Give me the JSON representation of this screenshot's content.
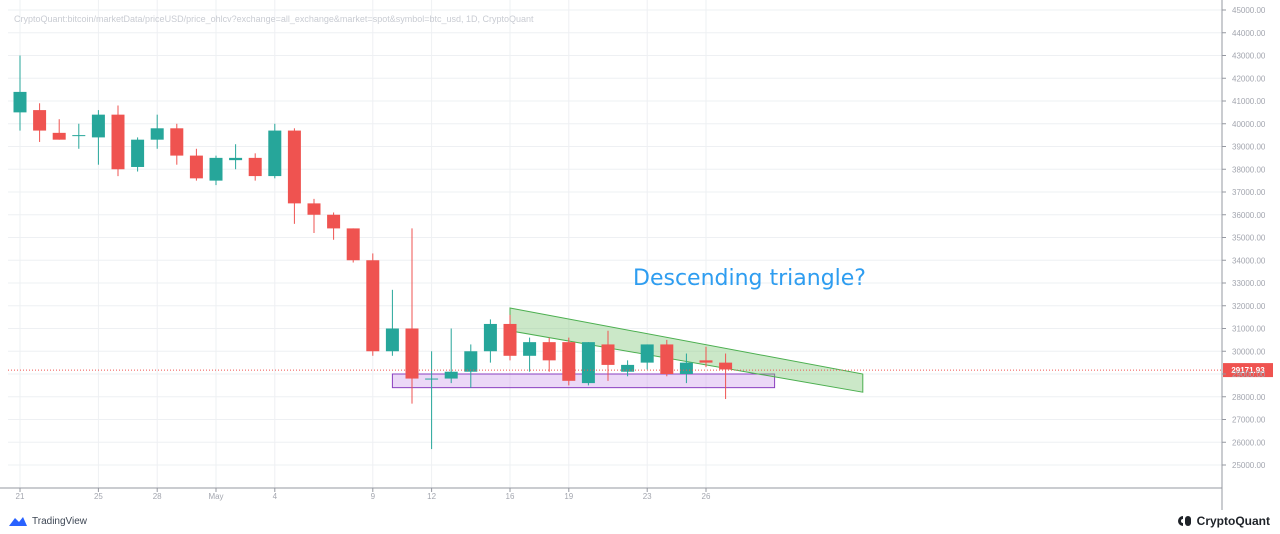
{
  "source_text": "CryptoQuant:bitcoin/marketData/priceUSD/price_ohlcv?exchange=all_exchange&market=spot&symbol=btc_usd, 1D, CryptoQuant",
  "footer": {
    "tradingview_label": "TradingView",
    "cryptoquant_label": "CryptoQuant"
  },
  "colors": {
    "up": "#26a69a",
    "down": "#ef5350",
    "triangle": "#7cc576",
    "support_box": "#c58ee8",
    "annotation": "#2e9df0",
    "price_line": "#ef5350"
  },
  "chart_data": {
    "type": "candlestick",
    "title": "",
    "xlabel": "",
    "ylabel": "",
    "ylim": [
      24000,
      45200
    ],
    "y_ticks": [
      "45000.00",
      "44000.00",
      "43000.00",
      "42000.00",
      "41000.00",
      "40000.00",
      "39000.00",
      "38000.00",
      "37000.00",
      "36000.00",
      "35000.00",
      "34000.00",
      "33000.00",
      "32000.00",
      "31000.00",
      "30000.00",
      "29000.00",
      "28000.00",
      "27000.00",
      "26000.00",
      "25000.00"
    ],
    "x_tick_labels": [
      "21",
      "25",
      "28",
      "May",
      "4",
      "9",
      "12",
      "16",
      "19",
      "23",
      "26"
    ],
    "x_tick_day_index": [
      0,
      4,
      7,
      10,
      13,
      18,
      21,
      25,
      28,
      32,
      35
    ],
    "candles": [
      {
        "day": 0,
        "o": 40500,
        "h": 43000,
        "l": 39700,
        "c": 41400
      },
      {
        "day": 1,
        "o": 40600,
        "h": 40900,
        "l": 39200,
        "c": 39700
      },
      {
        "day": 2,
        "o": 39600,
        "h": 40200,
        "l": 39300,
        "c": 39300
      },
      {
        "day": 3,
        "o": 39500,
        "h": 40000,
        "l": 38900,
        "c": 39500
      },
      {
        "day": 4,
        "o": 39400,
        "h": 40600,
        "l": 38200,
        "c": 40400
      },
      {
        "day": 5,
        "o": 40400,
        "h": 40800,
        "l": 37700,
        "c": 38000
      },
      {
        "day": 6,
        "o": 38100,
        "h": 39400,
        "l": 37900,
        "c": 39300
      },
      {
        "day": 7,
        "o": 39300,
        "h": 40400,
        "l": 38900,
        "c": 39800
      },
      {
        "day": 8,
        "o": 39800,
        "h": 40000,
        "l": 38200,
        "c": 38600
      },
      {
        "day": 9,
        "o": 38600,
        "h": 38900,
        "l": 37500,
        "c": 37600
      },
      {
        "day": 10,
        "o": 37500,
        "h": 38600,
        "l": 37300,
        "c": 38500
      },
      {
        "day": 11,
        "o": 38400,
        "h": 39100,
        "l": 38000,
        "c": 38500
      },
      {
        "day": 12,
        "o": 38500,
        "h": 38700,
        "l": 37500,
        "c": 37700
      },
      {
        "day": 13,
        "o": 37700,
        "h": 40000,
        "l": 37600,
        "c": 39700
      },
      {
        "day": 14,
        "o": 39700,
        "h": 39800,
        "l": 35600,
        "c": 36500
      },
      {
        "day": 15,
        "o": 36500,
        "h": 36700,
        "l": 35200,
        "c": 36000
      },
      {
        "day": 16,
        "o": 36000,
        "h": 36100,
        "l": 34900,
        "c": 35400
      },
      {
        "day": 17,
        "o": 35400,
        "h": 35400,
        "l": 33900,
        "c": 34000
      },
      {
        "day": 18,
        "o": 34000,
        "h": 34300,
        "l": 29800,
        "c": 30000
      },
      {
        "day": 19,
        "o": 30000,
        "h": 32700,
        "l": 29800,
        "c": 31000
      },
      {
        "day": 20,
        "o": 31000,
        "h": 35400,
        "l": 27700,
        "c": 28800
      },
      {
        "day": 21,
        "o": 28800,
        "h": 30000,
        "l": 25700,
        "c": 28800
      },
      {
        "day": 22,
        "o": 28800,
        "h": 31000,
        "l": 28600,
        "c": 29100
      },
      {
        "day": 23,
        "o": 29100,
        "h": 30300,
        "l": 28400,
        "c": 30000
      },
      {
        "day": 24,
        "o": 30000,
        "h": 31400,
        "l": 29500,
        "c": 31200
      },
      {
        "day": 25,
        "o": 31200,
        "h": 31600,
        "l": 29600,
        "c": 29800
      },
      {
        "day": 26,
        "o": 29800,
        "h": 30600,
        "l": 29100,
        "c": 30400
      },
      {
        "day": 27,
        "o": 30400,
        "h": 30600,
        "l": 29100,
        "c": 29600
      },
      {
        "day": 28,
        "o": 30400,
        "h": 30600,
        "l": 28500,
        "c": 28700
      },
      {
        "day": 29,
        "o": 28600,
        "h": 30400,
        "l": 28500,
        "c": 30400
      },
      {
        "day": 30,
        "o": 30300,
        "h": 30900,
        "l": 28700,
        "c": 29400
      },
      {
        "day": 31,
        "o": 29100,
        "h": 29600,
        "l": 28900,
        "c": 29400
      },
      {
        "day": 32,
        "o": 29500,
        "h": 30300,
        "l": 29200,
        "c": 30300
      },
      {
        "day": 33,
        "o": 30300,
        "h": 30500,
        "l": 28900,
        "c": 29000
      },
      {
        "day": 34,
        "o": 29000,
        "h": 29900,
        "l": 28600,
        "c": 29500
      },
      {
        "day": 35,
        "o": 29600,
        "h": 30200,
        "l": 29300,
        "c": 29500
      },
      {
        "day": 36,
        "o": 29500,
        "h": 29900,
        "l": 27900,
        "c": 29200
      }
    ],
    "last_price": 29171.93,
    "last_price_label": "29171.93",
    "annotations": {
      "text": "Descending triangle?",
      "triangle_channel": {
        "upper_start": {
          "day": 25,
          "price": 31900
        },
        "upper_end": {
          "day": 43,
          "price": 29000
        },
        "lower_start": {
          "day": 25,
          "price": 30900
        },
        "lower_end": {
          "day": 43,
          "price": 28200
        }
      },
      "support_box": {
        "day_start": 19,
        "day_end": 38.5,
        "price_top": 29000,
        "price_bottom": 28400
      }
    },
    "grid": true
  }
}
